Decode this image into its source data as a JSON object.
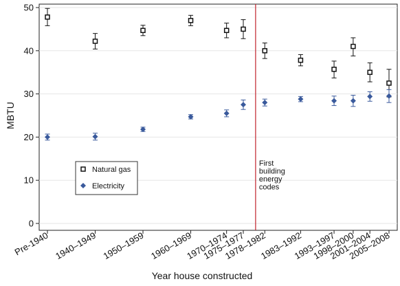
{
  "chart_data": {
    "type": "scatter",
    "xlabel": "Year house constructed",
    "ylabel": "MBTU",
    "ylim": [
      0,
      50
    ],
    "yticks": [
      0,
      10,
      20,
      30,
      40,
      50
    ],
    "grid": true,
    "legend_position": "left-lower",
    "categories": [
      "Pre-1940",
      "1940–1949",
      "1950–1959",
      "1960–1969",
      "1970–1974",
      "1975–1977",
      "1978–1982",
      "1983–1992",
      "1993–1997",
      "1998–2000",
      "2001–2004",
      "2005–2008"
    ],
    "series": [
      {
        "name": "Natural gas",
        "marker": "hollow-square",
        "color": "#111111",
        "points": [
          {
            "x": 1935,
            "y": 47.8,
            "low": 45.8,
            "high": 49.8
          },
          {
            "x": 1945,
            "y": 42.2,
            "low": 40.4,
            "high": 44.0
          },
          {
            "x": 1955,
            "y": 44.7,
            "low": 43.5,
            "high": 45.9
          },
          {
            "x": 1965,
            "y": 47.0,
            "low": 45.8,
            "high": 48.2
          },
          {
            "x": 1972.5,
            "y": 44.7,
            "low": 43.0,
            "high": 46.4
          },
          {
            "x": 1976,
            "y": 45.0,
            "low": 42.8,
            "high": 47.2
          },
          {
            "x": 1980.5,
            "y": 40.0,
            "low": 38.2,
            "high": 41.8
          },
          {
            "x": 1988,
            "y": 37.8,
            "low": 36.5,
            "high": 39.1
          },
          {
            "x": 1995,
            "y": 35.7,
            "low": 33.7,
            "high": 37.6
          },
          {
            "x": 1999,
            "y": 41.0,
            "low": 38.8,
            "high": 43.0
          },
          {
            "x": 2002.5,
            "y": 35.0,
            "low": 32.8,
            "high": 37.2
          },
          {
            "x": 2006.5,
            "y": 32.5,
            "low": 29.3,
            "high": 35.7
          }
        ]
      },
      {
        "name": "Electricity",
        "marker": "filled-diamond",
        "color": "#3a5a9c",
        "points": [
          {
            "x": 1935,
            "y": 20.0,
            "low": 19.3,
            "high": 20.7
          },
          {
            "x": 1945,
            "y": 20.1,
            "low": 19.3,
            "high": 20.9
          },
          {
            "x": 1955,
            "y": 21.8,
            "low": 21.3,
            "high": 22.3
          },
          {
            "x": 1965,
            "y": 24.7,
            "low": 24.2,
            "high": 25.2
          },
          {
            "x": 1972.5,
            "y": 25.5,
            "low": 24.7,
            "high": 26.3
          },
          {
            "x": 1976,
            "y": 27.5,
            "low": 26.4,
            "high": 28.6
          },
          {
            "x": 1980.5,
            "y": 28.0,
            "low": 27.2,
            "high": 28.8
          },
          {
            "x": 1988,
            "y": 28.8,
            "low": 28.2,
            "high": 29.4
          },
          {
            "x": 1995,
            "y": 28.4,
            "low": 27.3,
            "high": 29.5
          },
          {
            "x": 1999,
            "y": 28.4,
            "low": 27.1,
            "high": 29.7
          },
          {
            "x": 2002.5,
            "y": 29.4,
            "low": 28.3,
            "high": 30.5
          },
          {
            "x": 2006.5,
            "y": 29.5,
            "low": 28.0,
            "high": 31.0
          }
        ]
      }
    ],
    "reference_line": {
      "x": 1978,
      "color": "#c0202a",
      "annotation": [
        "First",
        "building",
        "energy",
        "codes"
      ]
    }
  }
}
